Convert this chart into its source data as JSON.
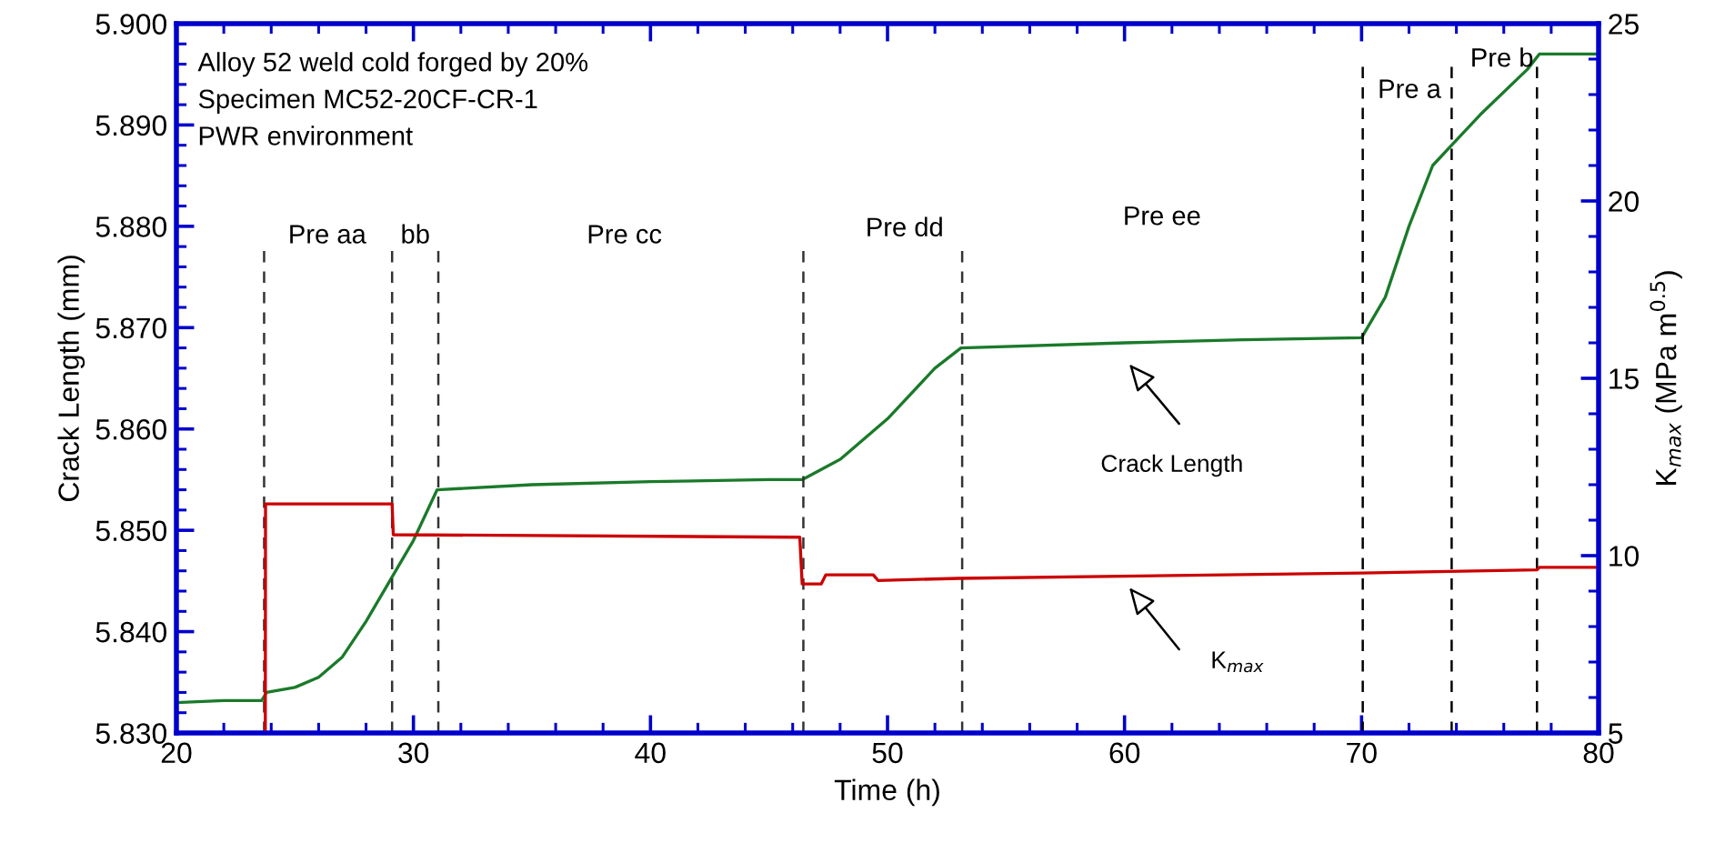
{
  "chart_data": {
    "type": "line",
    "xlabel": "Time (h)",
    "ylabel": "Crack Length (mm)",
    "y2label": "K$_{max}$ (MPa m$^{0.5}$)",
    "xlim": [
      20,
      80
    ],
    "xticks": [
      20,
      30,
      40,
      50,
      60,
      70,
      80
    ],
    "ylim": [
      5.83,
      5.9
    ],
    "yticks": [
      {
        "value": 5.83,
        "label": "5.830"
      },
      {
        "value": 5.84,
        "label": "5.840"
      },
      {
        "value": 5.85,
        "label": "5.850"
      },
      {
        "value": 5.86,
        "label": "5.860"
      },
      {
        "value": 5.87,
        "label": "5.870"
      },
      {
        "value": 5.88,
        "label": "5.880"
      },
      {
        "value": 5.89,
        "label": "5.890"
      },
      {
        "value": 5.9,
        "label": "5.900"
      }
    ],
    "y2lim": [
      5,
      25
    ],
    "y2ticks": [
      5,
      10,
      15,
      20,
      25
    ],
    "grid": false,
    "legend": false,
    "series": [
      {
        "color": "#1a7a2a",
        "x": [
          20,
          22,
          23.6,
          23.8,
          25,
          26,
          27,
          28,
          29,
          30,
          31,
          35,
          40,
          45,
          46.4,
          48,
          50,
          52,
          53.1,
          60,
          65,
          70,
          71,
          72,
          73,
          73.8,
          75,
          77,
          77.5,
          80
        ],
        "values": [
          5.833,
          5.8332,
          5.8332,
          5.834,
          5.8345,
          5.8355,
          5.8375,
          5.841,
          5.845,
          5.849,
          5.854,
          5.8545,
          5.8548,
          5.855,
          5.855,
          5.857,
          5.861,
          5.866,
          5.868,
          5.8685,
          5.8688,
          5.869,
          5.873,
          5.88,
          5.886,
          5.888,
          5.891,
          5.8955,
          5.897,
          5.897
        ]
      },
      {
        "color": "#cc0000",
        "axis": "y2",
        "x": [
          23.75,
          23.76,
          29.1,
          29.15,
          46.3,
          46.4,
          47.2,
          47.4,
          49.4,
          49.6,
          53,
          70,
          77.4,
          77.5,
          80
        ],
        "values": [
          5,
          11.46,
          11.46,
          10.59,
          10.52,
          9.2,
          9.2,
          9.46,
          9.46,
          9.3,
          9.36,
          9.51,
          9.6,
          9.67,
          9.67
        ]
      }
    ],
    "ref_lines": [
      {
        "axis": "x",
        "value": 23.7,
        "line_style": "dashed",
        "color": "#333333"
      },
      {
        "axis": "x",
        "value": 29.1,
        "line_style": "dashed",
        "color": "#333333"
      },
      {
        "axis": "x",
        "value": 31.05,
        "line_style": "dashed",
        "color": "#333333"
      },
      {
        "axis": "x",
        "value": 46.45,
        "line_style": "dashed",
        "color": "#333333"
      },
      {
        "axis": "x",
        "value": 53.15,
        "line_style": "dashed",
        "color": "#333333"
      },
      {
        "axis": "x",
        "value": 70.05,
        "line_style": "dashed",
        "color": "#000000"
      },
      {
        "axis": "x",
        "value": 73.8,
        "line_style": "dashed",
        "color": "#000000"
      },
      {
        "axis": "x",
        "value": 77.4,
        "line_style": "dashed",
        "color": "#000000"
      }
    ],
    "annotations": [
      "Alloy 52 weld cold forged by 20%",
      "Specimen MC52-20CF-CR-1",
      "PWR environment",
      "Pre aa",
      "bb",
      "Pre cc",
      "Pre dd",
      "Pre ee",
      "Pre a",
      "Pre b",
      "Crack Length",
      "K$_{max}$"
    ]
  }
}
